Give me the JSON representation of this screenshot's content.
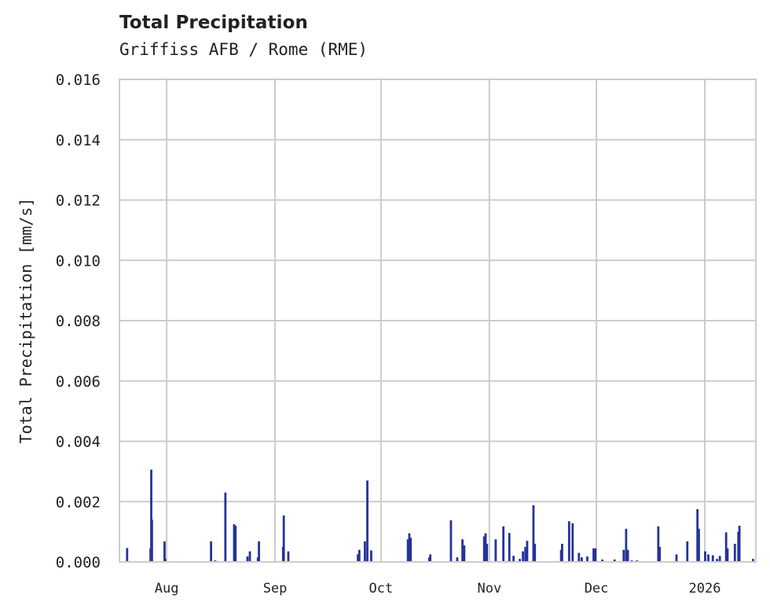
{
  "title": "Total Precipitation",
  "subtitle": "Griffiss AFB / Rome (RME)",
  "colors": {
    "series": "#24339a",
    "grid": "#cccccc",
    "frame": "#cccccc",
    "text": "#222222"
  },
  "chart_data": {
    "type": "bar",
    "title": "Total Precipitation",
    "subtitle": "Griffiss AFB / Rome (RME)",
    "xlabel": "",
    "ylabel": "Total Precipitation [mm/s]",
    "ylim": [
      0,
      0.016
    ],
    "yticks": [
      "0.000",
      "0.002",
      "0.004",
      "0.006",
      "0.008",
      "0.010",
      "0.012",
      "0.014",
      "0.016"
    ],
    "xticks": [
      {
        "label": "Aug",
        "day": 13.5
      },
      {
        "label": "Sep",
        "day": 44.5
      },
      {
        "label": "Oct",
        "day": 74.8
      },
      {
        "label": "Nov",
        "day": 105.8
      },
      {
        "label": "Dec",
        "day": 136.4
      },
      {
        "label": "2026",
        "day": 167.4
      }
    ],
    "x_range_days": [
      0,
      182
    ],
    "x_note": "day offset from axis start (~Jul 19, 2025)",
    "grid": true,
    "legend": null,
    "series": [
      {
        "name": "Total Precipitation",
        "points": [
          {
            "day": 2.2,
            "value": 0.00046
          },
          {
            "day": 8.9,
            "value": 0.00045
          },
          {
            "day": 9.1,
            "value": 0.00306
          },
          {
            "day": 9.3,
            "value": 0.0014
          },
          {
            "day": 12.9,
            "value": 0.00068
          },
          {
            "day": 13.1,
            "value": 0.0001
          },
          {
            "day": 26.2,
            "value": 0.00068
          },
          {
            "day": 27.4,
            "value": 5e-05
          },
          {
            "day": 30.3,
            "value": 0.0023
          },
          {
            "day": 32.8,
            "value": 0.00125
          },
          {
            "day": 33.2,
            "value": 0.0012
          },
          {
            "day": 36.6,
            "value": 0.00018
          },
          {
            "day": 37.3,
            "value": 0.00035
          },
          {
            "day": 39.9,
            "value": 0.00068
          },
          {
            "day": 39.6,
            "value": 0.00015
          },
          {
            "day": 46.8,
            "value": 0.0005
          },
          {
            "day": 47.0,
            "value": 0.00154
          },
          {
            "day": 48.3,
            "value": 0.00035
          },
          {
            "day": 68.2,
            "value": 0.00025
          },
          {
            "day": 68.6,
            "value": 0.0004
          },
          {
            "day": 70.2,
            "value": 0.00068
          },
          {
            "day": 70.9,
            "value": 0.0027
          },
          {
            "day": 72.0,
            "value": 0.00038
          },
          {
            "day": 82.5,
            "value": 0.00075
          },
          {
            "day": 82.9,
            "value": 0.00095
          },
          {
            "day": 83.3,
            "value": 0.0008
          },
          {
            "day": 88.6,
            "value": 0.00015
          },
          {
            "day": 88.9,
            "value": 0.00025
          },
          {
            "day": 94.8,
            "value": 0.00138
          },
          {
            "day": 96.6,
            "value": 0.00015
          },
          {
            "day": 98.1,
            "value": 0.00075
          },
          {
            "day": 98.6,
            "value": 0.00055
          },
          {
            "day": 104.3,
            "value": 0.00085
          },
          {
            "day": 104.7,
            "value": 0.00095
          },
          {
            "day": 105.1,
            "value": 0.0006
          },
          {
            "day": 107.6,
            "value": 0.00075
          },
          {
            "day": 109.8,
            "value": 0.00118
          },
          {
            "day": 111.5,
            "value": 0.00096
          },
          {
            "day": 112.7,
            "value": 0.0002
          },
          {
            "day": 114.5,
            "value": 0.0001
          },
          {
            "day": 115.4,
            "value": 0.00035
          },
          {
            "day": 116.1,
            "value": 0.0005
          },
          {
            "day": 116.6,
            "value": 0.0007
          },
          {
            "day": 118.4,
            "value": 0.00188
          },
          {
            "day": 118.8,
            "value": 0.0006
          },
          {
            "day": 126.3,
            "value": 0.0004
          },
          {
            "day": 126.6,
            "value": 0.0006
          },
          {
            "day": 128.6,
            "value": 0.00135
          },
          {
            "day": 129.6,
            "value": 0.00128
          },
          {
            "day": 131.4,
            "value": 0.0003
          },
          {
            "day": 132.2,
            "value": 0.00015
          },
          {
            "day": 133.8,
            "value": 0.00018
          },
          {
            "day": 135.6,
            "value": 0.00045
          },
          {
            "day": 136.1,
            "value": 0.00045
          },
          {
            "day": 138.1,
            "value": 8e-05
          },
          {
            "day": 141.6,
            "value": 8e-05
          },
          {
            "day": 144.2,
            "value": 0.0004
          },
          {
            "day": 144.9,
            "value": 0.0011
          },
          {
            "day": 145.4,
            "value": 0.0004
          },
          {
            "day": 146.5,
            "value": 5e-05
          },
          {
            "day": 148.0,
            "value": 5e-05
          },
          {
            "day": 154.1,
            "value": 0.00118
          },
          {
            "day": 154.5,
            "value": 0.0005
          },
          {
            "day": 159.3,
            "value": 0.00025
          },
          {
            "day": 162.4,
            "value": 0.00068
          },
          {
            "day": 165.3,
            "value": 0.00175
          },
          {
            "day": 165.7,
            "value": 0.0011
          },
          {
            "day": 167.5,
            "value": 0.00035
          },
          {
            "day": 168.4,
            "value": 0.00025
          },
          {
            "day": 169.7,
            "value": 0.00022
          },
          {
            "day": 170.9,
            "value": 0.0001
          },
          {
            "day": 171.7,
            "value": 0.0002
          },
          {
            "day": 173.5,
            "value": 0.00098
          },
          {
            "day": 173.9,
            "value": 0.00045
          },
          {
            "day": 176.0,
            "value": 0.0006
          },
          {
            "day": 177.0,
            "value": 0.001
          },
          {
            "day": 177.3,
            "value": 0.0012
          },
          {
            "day": 181.2,
            "value": 0.0001
          }
        ]
      }
    ]
  }
}
